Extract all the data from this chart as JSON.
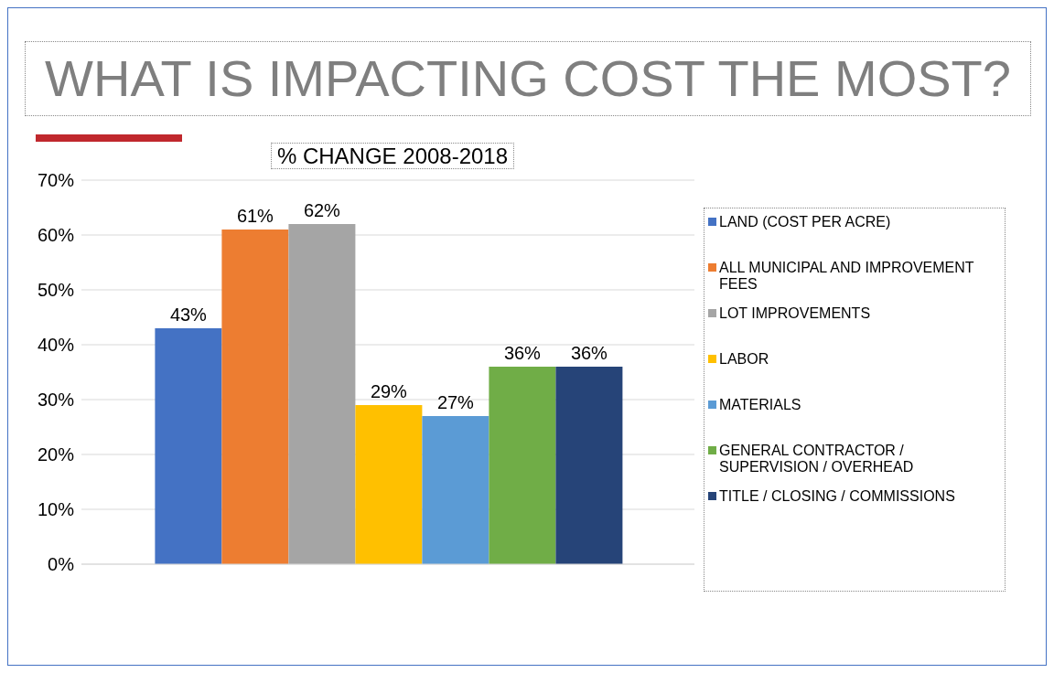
{
  "chart_data": {
    "type": "bar",
    "title": "WHAT IS IMPACTING COST THE MOST?",
    "subtitle": "% CHANGE 2008-2018",
    "categories": [
      null
    ],
    "series": [
      {
        "name": "LAND (COST PER ACRE)",
        "color": "#4472c4",
        "values": [
          43
        ],
        "value_labels": [
          "43%"
        ]
      },
      {
        "name": "ALL MUNICIPAL AND IMPROVEMENT FEES",
        "color": "#ed7d31",
        "values": [
          61
        ],
        "value_labels": [
          "61%"
        ]
      },
      {
        "name": "LOT IMPROVEMENTS",
        "color": "#a5a5a5",
        "values": [
          62
        ],
        "value_labels": [
          "62%"
        ]
      },
      {
        "name": "LABOR",
        "color": "#ffc000",
        "values": [
          29
        ],
        "value_labels": [
          "29%"
        ]
      },
      {
        "name": "MATERIALS",
        "color": "#5b9bd5",
        "values": [
          27
        ],
        "value_labels": [
          "27%"
        ]
      },
      {
        "name": "GENERAL CONTRACTOR / SUPERVISION / OVERHEAD",
        "color": "#70ad47",
        "values": [
          36
        ],
        "value_labels": [
          "36%"
        ]
      },
      {
        "name": "TITLE / CLOSING / COMMISSIONS",
        "color": "#264478",
        "values": [
          36
        ],
        "value_labels": [
          "36%"
        ]
      }
    ],
    "ylim": [
      0,
      70
    ],
    "yticks": [
      {
        "value": 0,
        "label": "0%"
      },
      {
        "value": 10,
        "label": "10%"
      },
      {
        "value": 20,
        "label": "20%"
      },
      {
        "value": 30,
        "label": "30%"
      },
      {
        "value": 40,
        "label": "40%"
      },
      {
        "value": 50,
        "label": "50%"
      },
      {
        "value": 60,
        "label": "60%"
      },
      {
        "value": 70,
        "label": "70%"
      }
    ],
    "grid": "y",
    "legend": "right"
  }
}
